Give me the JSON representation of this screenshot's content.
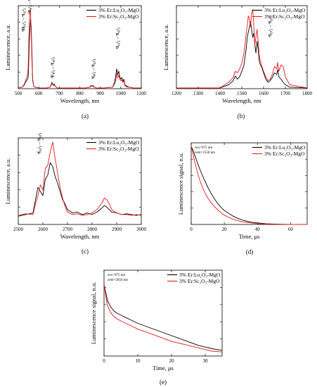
{
  "colors": {
    "black_series": "#000000",
    "red_series": "#e8191c"
  },
  "chart_data": [
    {
      "type": "line",
      "panel": "(a)",
      "xlabel": "Wavelength, nm",
      "ylabel": "Luminescence, a.u.",
      "xlim": [
        500,
        1100
      ],
      "ylim": [
        0,
        1.05
      ],
      "xticks": [
        "500",
        "600",
        "700",
        "800",
        "900",
        "1000",
        "1100"
      ],
      "legend": [
        "3% Er:Lu₂O₃-MgO",
        "3% Er:Sc₂O₃-MgO"
      ],
      "legend_position": "top-right",
      "annotations": [
        "²H₁₁/₂→⁴I₁₅/₂",
        "⁴S₃/₂→⁴I₁₅/₂",
        "⁴F₉/₂→⁴I₁₅/₂",
        "⁴I₉/₂→⁴I₁₅/₂",
        "⁴I₁₁/₂→⁴I₁₅/₂"
      ],
      "series": [
        {
          "name": "3% Er:Lu₂O₃-MgO",
          "x": [
            500,
            520,
            530,
            535,
            540,
            545,
            548,
            550,
            553,
            556,
            560,
            563,
            566,
            570,
            575,
            580,
            600,
            640,
            655,
            660,
            664,
            668,
            672,
            676,
            680,
            690,
            720,
            800,
            830,
            850,
            855,
            860,
            865,
            870,
            880,
            920,
            960,
            970,
            975,
            980,
            985,
            990,
            995,
            1000,
            1005,
            1010,
            1015,
            1020,
            1030,
            1040,
            1060,
            1100
          ],
          "y": [
            0.01,
            0.02,
            0.05,
            0.08,
            0.1,
            0.12,
            0.14,
            0.25,
            0.55,
            0.7,
            0.88,
            0.78,
            0.5,
            0.12,
            0.03,
            0.02,
            0.01,
            0.01,
            0.02,
            0.05,
            0.08,
            0.06,
            0.04,
            0.06,
            0.03,
            0.01,
            0.01,
            0.01,
            0.01,
            0.02,
            0.04,
            0.03,
            0.04,
            0.02,
            0.01,
            0.01,
            0.02,
            0.08,
            0.15,
            0.25,
            0.18,
            0.22,
            0.15,
            0.12,
            0.14,
            0.09,
            0.12,
            0.05,
            0.03,
            0.02,
            0.01,
            0.01
          ]
        },
        {
          "name": "3% Er:Sc₂O₃-MgO",
          "x": [
            500,
            520,
            530,
            535,
            540,
            545,
            548,
            550,
            552,
            555,
            558,
            560,
            563,
            566,
            570,
            575,
            580,
            600,
            640,
            655,
            660,
            664,
            668,
            672,
            676,
            680,
            690,
            720,
            800,
            830,
            850,
            855,
            860,
            865,
            870,
            880,
            920,
            960,
            970,
            975,
            980,
            985,
            990,
            995,
            1000,
            1005,
            1010,
            1015,
            1020,
            1030,
            1040,
            1060,
            1100
          ],
          "y": [
            0.01,
            0.02,
            0.06,
            0.1,
            0.13,
            0.18,
            0.25,
            0.45,
            0.7,
            0.9,
            1.0,
            0.95,
            0.7,
            0.4,
            0.1,
            0.03,
            0.02,
            0.01,
            0.01,
            0.02,
            0.04,
            0.07,
            0.05,
            0.04,
            0.05,
            0.03,
            0.01,
            0.01,
            0.01,
            0.01,
            0.02,
            0.03,
            0.03,
            0.03,
            0.02,
            0.01,
            0.01,
            0.02,
            0.06,
            0.1,
            0.19,
            0.14,
            0.17,
            0.12,
            0.1,
            0.11,
            0.08,
            0.1,
            0.04,
            0.02,
            0.02,
            0.01,
            0.01
          ]
        }
      ]
    },
    {
      "type": "line",
      "panel": "(b)",
      "xlabel": "Wavelength, nm",
      "ylabel": "Luminescence, a.u.",
      "xlim": [
        1200,
        1800
      ],
      "ylim": [
        0,
        1.05
      ],
      "xticks": [
        "1200",
        "1300",
        "1400",
        "1500",
        "1600",
        "1700",
        "1800"
      ],
      "legend": [
        "3% Er:Lu₂O₃-MgO",
        "3% Er:Sc₂O₃-MgO"
      ],
      "legend_position": "top-right",
      "annotations": [
        "⁴I₁₃/₂→⁴I₁₅/₂"
      ],
      "series": [
        {
          "name": "3% Er:Lu₂O₃-MgO",
          "x": [
            1200,
            1400,
            1440,
            1460,
            1470,
            1480,
            1490,
            1500,
            1510,
            1515,
            1520,
            1525,
            1530,
            1535,
            1540,
            1545,
            1550,
            1555,
            1560,
            1565,
            1570,
            1575,
            1580,
            1585,
            1590,
            1600,
            1610,
            1620,
            1630,
            1640,
            1650,
            1660,
            1665,
            1670,
            1680,
            1690,
            1700,
            1720,
            1800
          ],
          "y": [
            0.01,
            0.01,
            0.05,
            0.1,
            0.16,
            0.12,
            0.15,
            0.22,
            0.3,
            0.4,
            0.5,
            0.65,
            0.72,
            0.78,
            0.85,
            0.75,
            0.65,
            0.7,
            0.55,
            0.45,
            0.6,
            0.5,
            0.35,
            0.3,
            0.28,
            0.2,
            0.12,
            0.08,
            0.1,
            0.14,
            0.2,
            0.18,
            0.24,
            0.15,
            0.12,
            0.08,
            0.05,
            0.02,
            0.01
          ]
        },
        {
          "name": "3% Er:Sc₂O₃-MgO",
          "x": [
            1200,
            1400,
            1440,
            1460,
            1470,
            1480,
            1490,
            1500,
            1510,
            1515,
            1520,
            1525,
            1530,
            1535,
            1540,
            1545,
            1550,
            1555,
            1560,
            1565,
            1570,
            1575,
            1580,
            1585,
            1590,
            1600,
            1610,
            1620,
            1630,
            1640,
            1650,
            1660,
            1665,
            1670,
            1680,
            1690,
            1700,
            1720,
            1800
          ],
          "y": [
            0.01,
            0.01,
            0.08,
            0.14,
            0.22,
            0.2,
            0.25,
            0.32,
            0.45,
            0.55,
            0.7,
            0.8,
            0.92,
            0.88,
            0.78,
            0.95,
            1.0,
            0.8,
            0.55,
            0.65,
            0.75,
            0.6,
            0.42,
            0.35,
            0.3,
            0.22,
            0.15,
            0.1,
            0.12,
            0.18,
            0.28,
            0.25,
            0.33,
            0.22,
            0.3,
            0.28,
            0.15,
            0.05,
            0.01
          ]
        }
      ]
    },
    {
      "type": "line",
      "panel": "(c)",
      "xlabel": "Wavelength, nm",
      "ylabel": "Luminescence, a.u.",
      "xlim": [
        2500,
        3000
      ],
      "ylim": [
        0,
        1.05
      ],
      "xticks": [
        "2500",
        "2600",
        "2700",
        "2800",
        "2900",
        "3000"
      ],
      "legend": [
        "3% Er:Lu₂O₃-MgO",
        "3% Er:Sc₂O₃-MgO"
      ],
      "legend_position": "top-right",
      "annotations": [
        "⁴I₁₁/₂→⁴I₁₃/₂"
      ],
      "series": [
        {
          "name": "3% Er:Lu₂O₃-MgO",
          "x": [
            2500,
            2530,
            2560,
            2570,
            2580,
            2590,
            2600,
            2610,
            2620,
            2630,
            2640,
            2650,
            2660,
            2670,
            2680,
            2690,
            2700,
            2720,
            2740,
            2760,
            2780,
            2800,
            2820,
            2840,
            2850,
            2860,
            2870,
            2880,
            2900,
            2920,
            2940,
            2960,
            2980,
            3000
          ],
          "y": [
            0.1,
            0.12,
            0.14,
            0.3,
            0.45,
            0.4,
            0.35,
            0.55,
            0.6,
            0.75,
            0.7,
            0.58,
            0.5,
            0.4,
            0.3,
            0.25,
            0.18,
            0.14,
            0.15,
            0.12,
            0.14,
            0.12,
            0.15,
            0.2,
            0.23,
            0.21,
            0.18,
            0.15,
            0.14,
            0.12,
            0.13,
            0.12,
            0.11,
            0.12
          ]
        },
        {
          "name": "3% Er:Sc₂O₃-MgO",
          "x": [
            2500,
            2530,
            2560,
            2570,
            2580,
            2590,
            2600,
            2610,
            2620,
            2630,
            2640,
            2650,
            2660,
            2670,
            2680,
            2690,
            2700,
            2720,
            2740,
            2760,
            2780,
            2800,
            2820,
            2840,
            2850,
            2860,
            2870,
            2880,
            2900,
            2920,
            2940,
            2960,
            2980,
            3000
          ],
          "y": [
            0.11,
            0.13,
            0.12,
            0.25,
            0.35,
            0.48,
            0.42,
            0.68,
            0.72,
            0.88,
            1.0,
            0.8,
            0.62,
            0.45,
            0.32,
            0.22,
            0.15,
            0.12,
            0.13,
            0.11,
            0.12,
            0.14,
            0.18,
            0.26,
            0.32,
            0.3,
            0.25,
            0.18,
            0.14,
            0.12,
            0.12,
            0.11,
            0.12,
            0.11
          ]
        }
      ]
    },
    {
      "type": "line",
      "panel": "(d)",
      "xlabel": "Time, μs",
      "ylabel": "Luminescence signal, n.u.",
      "xlim": [
        0,
        70
      ],
      "ylim": [
        0,
        1.05
      ],
      "xticks": [
        "0",
        "20",
        "40",
        "60"
      ],
      "conditions": [
        "λex=975 nm",
        "λem=1550 nm"
      ],
      "legend": [
        "3% Er:Lu₂O₃-MgO",
        "3% Er:Sc₂O₃-MgO"
      ],
      "legend_position": "top-right",
      "series": [
        {
          "name": "3% Er:Lu₂O₃-MgO",
          "x": [
            0,
            1,
            2,
            4,
            6,
            8,
            10,
            12,
            14,
            16,
            18,
            20,
            22,
            25,
            28,
            32,
            36,
            40,
            45,
            50,
            60,
            70
          ],
          "y": [
            1.0,
            0.96,
            0.9,
            0.78,
            0.67,
            0.57,
            0.48,
            0.4,
            0.33,
            0.27,
            0.22,
            0.18,
            0.15,
            0.11,
            0.08,
            0.05,
            0.03,
            0.02,
            0.01,
            0.005,
            0.0,
            0.0
          ]
        },
        {
          "name": "3% Er:Sc₂O₃-MgO",
          "x": [
            0,
            1,
            2,
            4,
            6,
            8,
            10,
            12,
            14,
            16,
            18,
            20,
            22,
            25,
            28,
            32,
            36,
            40,
            45,
            50,
            60,
            70
          ],
          "y": [
            1.0,
            0.92,
            0.82,
            0.65,
            0.52,
            0.42,
            0.34,
            0.28,
            0.23,
            0.19,
            0.15,
            0.12,
            0.1,
            0.07,
            0.05,
            0.03,
            0.02,
            0.01,
            0.005,
            0.0,
            0.0,
            0.0
          ]
        }
      ]
    },
    {
      "type": "line",
      "panel": "(e)",
      "xlabel": "Time, μs",
      "ylabel": "Luminescence signal, n.u.",
      "xlim": [
        0,
        35
      ],
      "ylim": [
        0,
        1.05
      ],
      "xticks": [
        "0",
        "10",
        "20",
        "30"
      ],
      "conditions": [
        "λex=975 nm",
        "λem=2650 nm"
      ],
      "legend": [
        "3% Er:Lu₂O₃-MgO",
        "3% Er:Sc₂O₃-MgO"
      ],
      "legend_position": "top-right",
      "series": [
        {
          "name": "3% Er:Lu₂O₃-MgO",
          "x": [
            0,
            0.5,
            1,
            2,
            3,
            4,
            5,
            6,
            8,
            10,
            12,
            14,
            16,
            18,
            20,
            22,
            24,
            26,
            28,
            30,
            32,
            35
          ],
          "y": [
            0.88,
            0.78,
            0.68,
            0.6,
            0.55,
            0.52,
            0.5,
            0.48,
            0.44,
            0.4,
            0.37,
            0.34,
            0.31,
            0.28,
            0.25,
            0.22,
            0.19,
            0.16,
            0.13,
            0.11,
            0.09,
            0.07
          ]
        },
        {
          "name": "3% Er:Sc₂O₃-MgO",
          "x": [
            0,
            0.5,
            1,
            2,
            3,
            4,
            5,
            6,
            8,
            10,
            12,
            14,
            16,
            18,
            20,
            22,
            24,
            26,
            28,
            30,
            32,
            35
          ],
          "y": [
            0.88,
            0.74,
            0.62,
            0.53,
            0.48,
            0.45,
            0.43,
            0.41,
            0.37,
            0.33,
            0.3,
            0.27,
            0.24,
            0.21,
            0.18,
            0.16,
            0.14,
            0.12,
            0.1,
            0.08,
            0.06,
            0.05
          ]
        }
      ]
    }
  ]
}
